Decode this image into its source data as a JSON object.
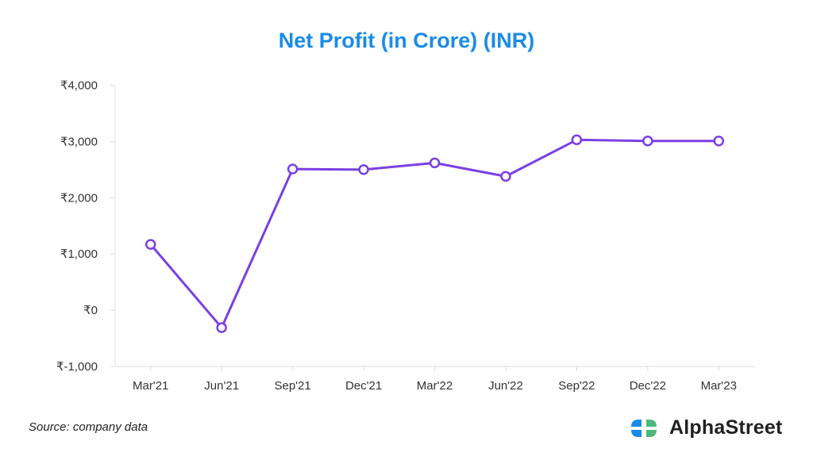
{
  "chart_data": {
    "type": "line",
    "title": "Net Profit (in Crore) (INR)",
    "categories": [
      "Mar'21",
      "Jun'21",
      "Sep'21",
      "Dec'21",
      "Mar'22",
      "Jun'22",
      "Sep'22",
      "Dec'22",
      "Mar'23"
    ],
    "series": [
      {
        "values": [
          1170,
          -310,
          2510,
          2500,
          2620,
          2380,
          3030,
          3010,
          3010
        ],
        "color": "#7b3fe4"
      }
    ],
    "yticks": [
      -1000,
      0,
      1000,
      2000,
      3000,
      4000
    ],
    "ytick_labels": [
      "₹-1,000",
      "₹0",
      "₹1,000",
      "₹2,000",
      "₹3,000",
      "₹4,000"
    ],
    "ylim": [
      -1000,
      4000
    ],
    "xlabel": "",
    "ylabel": "",
    "grid": false,
    "legend": "none",
    "title_color": "#1a8be8"
  },
  "footer": {
    "source": "Source: company data",
    "brand": "AlphaStreet"
  }
}
